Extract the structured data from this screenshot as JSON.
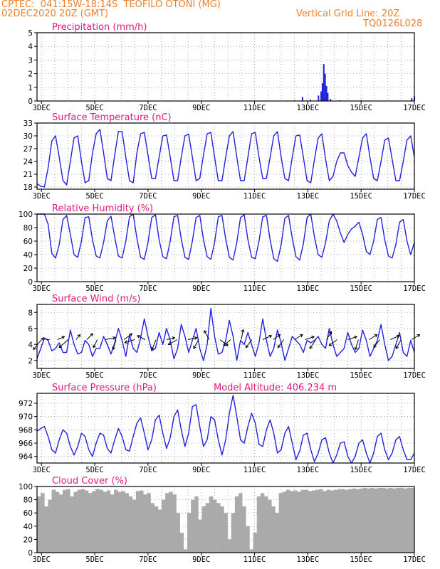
{
  "header": {
    "line1": "CPTEC:  041:15W-18:14S  TEOFILO OTONI (MG)",
    "line2": "02DEC2020 20Z (GMT)",
    "grid_note": "Vertical Grid Line: 20Z",
    "code": "TQ0126L028",
    "text_color": "#f07f2a"
  },
  "colors": {
    "series": "#2222dd",
    "title": "#e0177f",
    "cloud_fill": "#aaaaaa",
    "grid": "#999999"
  },
  "x_axis": {
    "start": "02DEC2020 20Z",
    "end": "17DEC2020",
    "tick_labels": [
      "3DEC",
      "5DEC",
      "7DEC",
      "9DEC",
      "11DEC",
      "13DEC",
      "15DEC",
      "17DEC"
    ]
  },
  "model_altitude": "Model Altitude: 406.234 m",
  "chart_data": [
    {
      "type": "bar",
      "title": "Precipitation (mm/h)",
      "ylim": [
        0,
        5
      ],
      "yticks": [
        0,
        1,
        2,
        3,
        4,
        5
      ],
      "points": [
        [
          12.5,
          0.05
        ],
        [
          12.8,
          0.3
        ],
        [
          13.1,
          0.1
        ],
        [
          13.4,
          0.4
        ],
        [
          13.5,
          0.7
        ],
        [
          13.55,
          1.3
        ],
        [
          13.6,
          2.7
        ],
        [
          13.65,
          2.0
        ],
        [
          13.7,
          1.1
        ],
        [
          13.75,
          0.6
        ],
        [
          13.85,
          0.15
        ],
        [
          14.2,
          0.05
        ],
        [
          15.0,
          0.05
        ],
        [
          16.9,
          0.2
        ],
        [
          17.0,
          0.35
        ]
      ],
      "note": "x in days of December 2020; y in mm/h"
    },
    {
      "type": "line",
      "title": "Surface Temperature (nC)",
      "ylim": [
        17.5,
        33
      ],
      "yticks": [
        18,
        21,
        24,
        27,
        30,
        33
      ],
      "series": [
        {
          "values": [
            18.8,
            18.2,
            18.0,
            22.5,
            28.8,
            30.0,
            25.0,
            19.5,
            18.5,
            24.0,
            29.5,
            30.0,
            24.0,
            19.0,
            19.5,
            26.0,
            30.5,
            31.5,
            26.0,
            20.0,
            19.5,
            25.5,
            31.0,
            31.0,
            25.0,
            19.5,
            19.0,
            26.0,
            30.5,
            30.8,
            25.5,
            20.0,
            20.0,
            25.0,
            30.0,
            30.2,
            25.0,
            19.5,
            19.5,
            25.0,
            30.0,
            30.4,
            25.0,
            19.5,
            20.0,
            25.5,
            30.5,
            30.8,
            25.0,
            19.5,
            19.5,
            25.0,
            30.0,
            31.0,
            25.0,
            19.5,
            19.5,
            25.0,
            30.5,
            30.8,
            25.0,
            20.0,
            20.0,
            25.0,
            30.0,
            31.0,
            25.0,
            20.0,
            19.5,
            25.0,
            30.0,
            30.2,
            25.0,
            19.5,
            19.0,
            24.5,
            29.5,
            30.5,
            24.5,
            19.5,
            20.5,
            24.0,
            26.0,
            26.0,
            23.0,
            21.5,
            20.5,
            25.0,
            29.5,
            30.5,
            25.0,
            20.0,
            19.5,
            24.0,
            29.0,
            29.5,
            24.5,
            19.5,
            19.5,
            24.0,
            29.0,
            30.0,
            25.0
          ]
        }
      ],
      "note": "x from 2.83 (02DEC 20Z) to 17.0 in equal 0.1417-day steps"
    },
    {
      "type": "line",
      "title": "Relative Humidity (%)",
      "ylim": [
        0,
        100
      ],
      "yticks": [
        0,
        20,
        40,
        60,
        80,
        100
      ],
      "series": [
        {
          "values": [
            100,
            100,
            100,
            85,
            42,
            35,
            55,
            92,
            98,
            70,
            40,
            36,
            60,
            95,
            96,
            62,
            38,
            35,
            58,
            90,
            97,
            66,
            38,
            35,
            60,
            96,
            100,
            64,
            36,
            33,
            58,
            95,
            99,
            62,
            37,
            34,
            60,
            96,
            98,
            63,
            36,
            33,
            60,
            95,
            98,
            62,
            37,
            33,
            58,
            96,
            98,
            63,
            36,
            32,
            58,
            95,
            99,
            62,
            36,
            34,
            60,
            96,
            98,
            62,
            34,
            30,
            55,
            94,
            98,
            64,
            37,
            32,
            56,
            95,
            100,
            66,
            40,
            36,
            58,
            90,
            100,
            90,
            72,
            58,
            70,
            78,
            82,
            88,
            70,
            45,
            40,
            60,
            92,
            95,
            62,
            38,
            35,
            55,
            88,
            92,
            60,
            40,
            58
          ]
        }
      ]
    },
    {
      "type": "line",
      "title": "Surface Wind (m/s)",
      "ylim": [
        1,
        9
      ],
      "yticks": [
        2,
        4,
        6,
        8
      ],
      "series": [
        {
          "values": [
            2.2,
            3.5,
            4.8,
            4.5,
            3.2,
            3.5,
            4.2,
            3.0,
            3.0,
            5.8,
            4.0,
            2.8,
            3.0,
            4.5,
            4.0,
            2.5,
            3.5,
            3.5,
            5.0,
            4.0,
            2.8,
            4.2,
            6.0,
            4.5,
            2.5,
            5.2,
            3.5,
            3.0,
            4.8,
            7.2,
            5.0,
            3.2,
            3.5,
            5.5,
            4.0,
            6.0,
            4.5,
            2.2,
            3.5,
            6.5,
            5.0,
            3.0,
            4.5,
            6.0,
            3.5,
            2.0,
            4.0,
            8.5,
            5.0,
            2.8,
            3.0,
            4.5,
            7.0,
            5.0,
            2.0,
            4.5,
            4.0,
            5.5,
            4.0,
            2.5,
            4.2,
            7.2,
            4.5,
            2.5,
            3.5,
            5.8,
            4.2,
            2.0,
            3.5,
            5.0,
            4.5,
            4.0,
            3.0,
            4.5,
            4.2,
            4.5,
            5.0,
            4.0,
            3.5,
            6.0,
            4.0,
            2.5,
            3.0,
            3.5,
            5.5,
            4.0,
            3.0,
            3.5,
            5.8,
            4.5,
            2.5,
            3.5,
            4.5,
            6.5,
            4.0,
            2.0,
            2.5,
            4.0,
            5.5,
            3.0,
            2.5,
            4.5,
            3.0
          ]
        }
      ],
      "vectors": [
        [
          3.0,
          -0.8,
          -1.0
        ],
        [
          3.3,
          -0.8,
          0.1
        ],
        [
          3.6,
          0.7,
          0.3
        ],
        [
          4.0,
          -0.9,
          -0.8
        ],
        [
          4.3,
          0.4,
          0.5
        ],
        [
          4.7,
          0.6,
          0.6
        ],
        [
          5.1,
          -0.4,
          -0.8
        ],
        [
          5.4,
          1.0,
          0.2
        ],
        [
          5.8,
          -0.3,
          -1.0
        ],
        [
          6.1,
          0.8,
          0.6
        ],
        [
          6.5,
          -1.0,
          -0.3
        ],
        [
          6.9,
          -0.8,
          0.4
        ],
        [
          7.3,
          -0.4,
          -1.0
        ],
        [
          7.7,
          0.8,
          0.2
        ],
        [
          8.1,
          -0.9,
          -0.5
        ],
        [
          8.5,
          0.9,
          0.2
        ],
        [
          8.9,
          -0.5,
          -0.9
        ],
        [
          9.3,
          -0.5,
          0.9
        ],
        [
          9.7,
          0.8,
          -0.6
        ],
        [
          10.1,
          -0.7,
          -0.6
        ],
        [
          10.5,
          0.2,
          1.0
        ],
        [
          10.9,
          -0.6,
          -0.8
        ],
        [
          11.3,
          0.9,
          0.4
        ],
        [
          11.7,
          0.7,
          0.5
        ],
        [
          12.1,
          -0.6,
          -0.8
        ],
        [
          12.5,
          0.8,
          0.5
        ],
        [
          12.9,
          0.9,
          0.3
        ],
        [
          13.3,
          -0.6,
          -0.9
        ],
        [
          13.7,
          0.5,
          0.8
        ],
        [
          14.1,
          -0.8,
          -0.6
        ],
        [
          14.5,
          0.9,
          0.3
        ],
        [
          14.9,
          -0.3,
          -1.0
        ],
        [
          15.3,
          0.8,
          0.5
        ],
        [
          15.7,
          -0.6,
          -0.8
        ],
        [
          16.1,
          0.9,
          0.4
        ],
        [
          16.5,
          -0.5,
          -0.9
        ],
        [
          16.9,
          0.8,
          0.5
        ]
      ],
      "note": "vectors: [x day, u, v] unit direction"
    },
    {
      "type": "line",
      "title": "Surface Pressure (hPa)",
      "ylim": [
        963,
        973.5
      ],
      "yticks": [
        964,
        966,
        968,
        970,
        972
      ],
      "series": [
        {
          "values": [
            967.8,
            968.2,
            968.5,
            967.0,
            965.0,
            964.5,
            966.5,
            968.0,
            967.5,
            965.5,
            964.2,
            965.5,
            967.5,
            967.0,
            965.0,
            964.0,
            966.0,
            967.5,
            967.2,
            965.2,
            964.5,
            966.5,
            968.2,
            967.0,
            965.0,
            964.8,
            967.0,
            969.0,
            969.8,
            967.5,
            965.0,
            966.5,
            969.5,
            970.2,
            967.5,
            965.2,
            966.8,
            970.0,
            971.0,
            968.0,
            965.5,
            967.5,
            971.5,
            971.8,
            968.5,
            965.5,
            966.5,
            970.0,
            969.5,
            966.5,
            964.2,
            966.5,
            970.5,
            973.2,
            970.0,
            966.5,
            966.0,
            968.5,
            970.5,
            969.0,
            965.8,
            965.5,
            968.0,
            969.5,
            967.5,
            964.5,
            965.0,
            967.5,
            968.5,
            966.0,
            963.5,
            964.8,
            967.2,
            967.5,
            965.0,
            963.2,
            964.5,
            966.5,
            966.8,
            964.5,
            963.0,
            964.2,
            966.0,
            966.2,
            964.0,
            963.0,
            964.0,
            966.0,
            966.5,
            964.5,
            963.0,
            964.5,
            967.0,
            967.5,
            965.0,
            963.5,
            964.5,
            966.5,
            967.0,
            965.0,
            963.5,
            963.5,
            964.5
          ]
        }
      ]
    },
    {
      "type": "bar",
      "title": "Cloud Cover (%)",
      "ylim": [
        0,
        100
      ],
      "yticks": [
        0,
        20,
        40,
        60,
        80,
        100
      ],
      "series": [
        {
          "values": [
            85,
            90,
            70,
            80,
            95,
            92,
            88,
            95,
            96,
            85,
            92,
            95,
            96,
            94,
            90,
            93,
            96,
            95,
            92,
            94,
            88,
            95,
            92,
            93,
            90,
            85,
            80,
            93,
            94,
            88,
            90,
            75,
            70,
            65,
            80,
            90,
            92,
            88,
            60,
            30,
            5,
            60,
            80,
            85,
            50,
            70,
            75,
            85,
            80,
            75,
            70,
            60,
            20,
            60,
            85,
            90,
            70,
            40,
            5,
            30,
            85,
            90,
            85,
            80,
            70,
            60,
            90,
            92,
            95,
            93,
            94,
            92,
            95,
            95,
            93,
            94,
            95,
            96,
            93,
            95,
            94,
            95,
            96,
            96,
            95,
            96,
            97,
            96,
            97,
            98,
            97,
            98,
            97,
            98,
            98,
            97,
            98,
            97,
            98,
            98,
            97,
            98,
            98
          ]
        }
      ]
    }
  ]
}
